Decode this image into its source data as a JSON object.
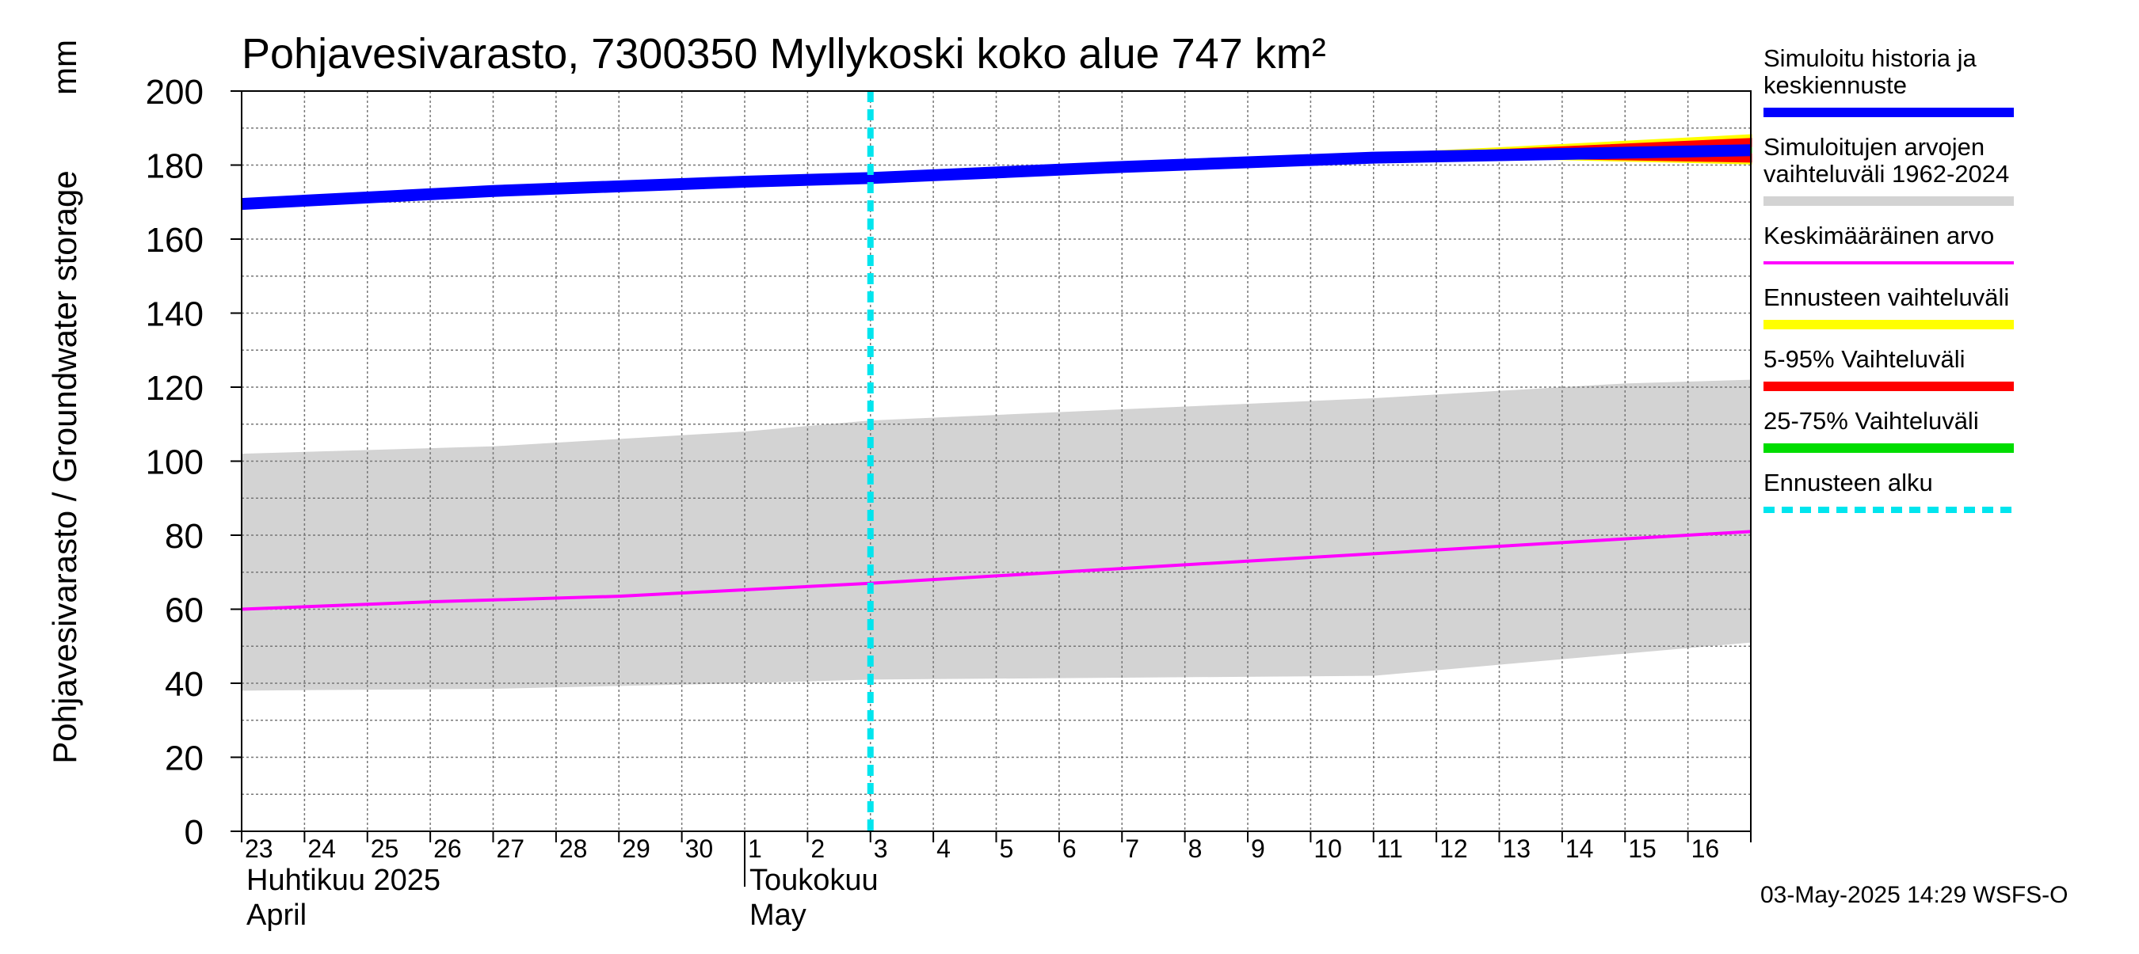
{
  "chart_data": {
    "type": "line",
    "title": "Pohjavesivarasto, 7300350 Myllykoski koko alue 747 km²",
    "ylabel": "Pohjavesivarasto / Groundwater storage",
    "yunit": "mm",
    "ylim": [
      0,
      200
    ],
    "yticks": [
      "0",
      "20",
      "40",
      "60",
      "80",
      "100",
      "120",
      "140",
      "160",
      "180",
      "200"
    ],
    "xlim": [
      "2025-04-23",
      "2025-05-17"
    ],
    "x_day_labels": [
      {
        "date": "2025-04-23",
        "label": "23"
      },
      {
        "date": "2025-04-24",
        "label": "24"
      },
      {
        "date": "2025-04-25",
        "label": "25"
      },
      {
        "date": "2025-04-26",
        "label": "26"
      },
      {
        "date": "2025-04-27",
        "label": "27"
      },
      {
        "date": "2025-04-28",
        "label": "28"
      },
      {
        "date": "2025-04-29",
        "label": "29"
      },
      {
        "date": "2025-04-30",
        "label": "30"
      },
      {
        "date": "2025-05-01",
        "label": "1"
      },
      {
        "date": "2025-05-02",
        "label": "2"
      },
      {
        "date": "2025-05-03",
        "label": "3"
      },
      {
        "date": "2025-05-04",
        "label": "4"
      },
      {
        "date": "2025-05-05",
        "label": "5"
      },
      {
        "date": "2025-05-06",
        "label": "6"
      },
      {
        "date": "2025-05-07",
        "label": "7"
      },
      {
        "date": "2025-05-08",
        "label": "8"
      },
      {
        "date": "2025-05-09",
        "label": "9"
      },
      {
        "date": "2025-05-10",
        "label": "10"
      },
      {
        "date": "2025-05-11",
        "label": "11"
      },
      {
        "date": "2025-05-12",
        "label": "12"
      },
      {
        "date": "2025-05-13",
        "label": "13"
      },
      {
        "date": "2025-05-14",
        "label": "14"
      },
      {
        "date": "2025-05-15",
        "label": "15"
      },
      {
        "date": "2025-05-16",
        "label": "16"
      }
    ],
    "month_labels": [
      {
        "date": "2025-04-23",
        "line1": "Huhtikuu  2025",
        "line2": "April"
      },
      {
        "date": "2025-05-01",
        "line1": "Toukokuu",
        "line2": "May"
      }
    ],
    "forecast_start": "2025-05-03",
    "series": [
      {
        "name": "Simuloitujen arvojen vaihteluväli 1962-2024",
        "kind": "band",
        "color": "#d3d3d3",
        "points": [
          {
            "x": "2025-04-23",
            "low": 38,
            "high": 102
          },
          {
            "x": "2025-04-27",
            "low": 38.5,
            "high": 104
          },
          {
            "x": "2025-05-01",
            "low": 40,
            "high": 108
          },
          {
            "x": "2025-05-03",
            "low": 41,
            "high": 111
          },
          {
            "x": "2025-05-07",
            "low": 41.5,
            "high": 114
          },
          {
            "x": "2025-05-11",
            "low": 42,
            "high": 117
          },
          {
            "x": "2025-05-13",
            "low": 45,
            "high": 119
          },
          {
            "x": "2025-05-15",
            "low": 48,
            "high": 121
          },
          {
            "x": "2025-05-17",
            "low": 51,
            "high": 122
          }
        ]
      },
      {
        "name": "Keskimääräinen arvo",
        "kind": "line",
        "color": "#ff00ff",
        "points": [
          {
            "x": "2025-04-23",
            "y": 60
          },
          {
            "x": "2025-04-26",
            "y": 62
          },
          {
            "x": "2025-04-29",
            "y": 63.5
          },
          {
            "x": "2025-05-03",
            "y": 67
          },
          {
            "x": "2025-05-05",
            "y": 69
          },
          {
            "x": "2025-05-09",
            "y": 73
          },
          {
            "x": "2025-05-13",
            "y": 77
          },
          {
            "x": "2025-05-17",
            "y": 81
          }
        ]
      },
      {
        "name": "Ennusteen vaihteluväli",
        "kind": "band",
        "color": "#ffff00",
        "points": [
          {
            "x": "2025-05-03",
            "low": 176.5,
            "high": 176.5
          },
          {
            "x": "2025-05-10",
            "low": 181.5,
            "high": 182
          },
          {
            "x": "2025-05-13",
            "low": 182,
            "high": 184.5
          },
          {
            "x": "2025-05-17",
            "low": 180.5,
            "high": 188
          }
        ]
      },
      {
        "name": "5-95% Vaihteluväli",
        "kind": "band",
        "color": "#ff0000",
        "points": [
          {
            "x": "2025-05-03",
            "low": 176.5,
            "high": 176.5
          },
          {
            "x": "2025-05-10",
            "low": 181.5,
            "high": 181.8
          },
          {
            "x": "2025-05-13",
            "low": 182.2,
            "high": 184
          },
          {
            "x": "2025-05-17",
            "low": 181,
            "high": 187
          }
        ]
      },
      {
        "name": "25-75% Vaihteluväli",
        "kind": "band",
        "color": "#00dd00",
        "points": [
          {
            "x": "2025-05-03",
            "low": 176.5,
            "high": 176.5
          },
          {
            "x": "2025-05-10",
            "low": 181.6,
            "high": 181.7
          },
          {
            "x": "2025-05-13",
            "low": 182.8,
            "high": 183.3
          },
          {
            "x": "2025-05-17",
            "low": 183.5,
            "high": 184.5
          }
        ]
      },
      {
        "name": "Simuloitu historia ja keskiennuste",
        "kind": "line",
        "color": "#0000ff",
        "points": [
          {
            "x": "2025-04-23",
            "y": 169.5
          },
          {
            "x": "2025-04-27",
            "y": 173
          },
          {
            "x": "2025-05-01",
            "y": 175.5
          },
          {
            "x": "2025-05-03",
            "y": 176.5
          },
          {
            "x": "2025-05-07",
            "y": 179.5
          },
          {
            "x": "2025-05-11",
            "y": 182
          },
          {
            "x": "2025-05-14",
            "y": 183
          },
          {
            "x": "2025-05-17",
            "y": 184
          }
        ]
      }
    ],
    "legend": [
      {
        "lines": [
          "Simuloitu historia ja",
          "keskiennuste"
        ],
        "color": "#0000ff",
        "style": "thick"
      },
      {
        "lines": [
          "Simuloitujen arvojen",
          "vaihteluväli 1962-2024"
        ],
        "color": "#d3d3d3",
        "style": "thick"
      },
      {
        "lines": [
          "Keskimääräinen arvo"
        ],
        "color": "#ff00ff",
        "style": "thin"
      },
      {
        "lines": [
          "Ennusteen vaihteluväli"
        ],
        "color": "#ffff00",
        "style": "thick"
      },
      {
        "lines": [
          "5-95% Vaihteluväli"
        ],
        "color": "#ff0000",
        "style": "thick"
      },
      {
        "lines": [
          "25-75% Vaihteluväli"
        ],
        "color": "#00dd00",
        "style": "thick"
      },
      {
        "lines": [
          "Ennusteen alku"
        ],
        "color": "#00e5ee",
        "style": "dashed"
      }
    ],
    "legend_position": "right",
    "grid": true,
    "footer": "03-May-2025 14:29 WSFS-O"
  }
}
